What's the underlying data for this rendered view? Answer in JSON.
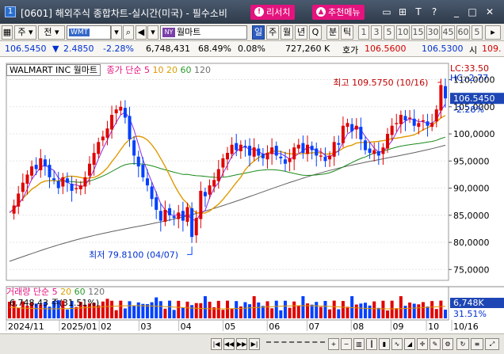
{
  "window": {
    "number": "1",
    "title": "[0601] 해외주식 종합차트-실시간(미국) - 필수소비",
    "research_button": "리서치",
    "recommend_button": "추천메뉴",
    "controls": [
      "▭",
      "⊞",
      "T",
      "?",
      "_",
      "□",
      "✕"
    ]
  },
  "toolbar": {
    "market": "주",
    "tab_label": "전",
    "code": "WMT",
    "exchange": "NY",
    "name": "월마트",
    "periods": [
      "일",
      "주",
      "월",
      "년",
      "Q",
      "분",
      "틱"
    ],
    "selected_period": "일",
    "intervals": [
      "1",
      "3",
      "5",
      "10",
      "15",
      "30",
      "45",
      "60",
      "5"
    ]
  },
  "quote": {
    "price": "106.5450",
    "change_arrow": "▼",
    "change": "2.4850",
    "change_pct": "-2.28%",
    "volume": "6,748,431",
    "volume_ratio": "68.49%",
    "turnover_pct": "0.08%",
    "amount": "727,260 K",
    "bid_label": "호가",
    "bid": "106.5600",
    "ask": "106.5300",
    "extra_label": "시",
    "extra_value": "109."
  },
  "chart": {
    "legend_name": "WALMART INC 월마트",
    "legend_ma_label": "종가 단순",
    "legend_ma_values": [
      "5",
      "10",
      "20",
      "60",
      "120"
    ],
    "legend_ma_colors": [
      "#e4137e",
      "#e09000",
      "#d4a200",
      "#2a9a2a",
      "#707070"
    ],
    "high_annotation": "최고 109.5750 (10/16)",
    "low_annotation": "최저 79.8100 (04/07)",
    "lc_label": "LC:33.50",
    "hc_label": "HC:-2.77",
    "price_tag": "106.5450",
    "pct_tag": "-2.28%",
    "volume_legend_label": "거래량 단순",
    "volume_legend_values": [
      "5",
      "20",
      "60",
      "120"
    ],
    "volume_value": "6,748,43 주(31.51%)",
    "volume_tag": "6,748K",
    "volume_pct_tag": "31.51%",
    "colors": {
      "up": "#e00000",
      "down": "#0040ff",
      "ma5": "#8a2be2",
      "ma20": "#e09a00",
      "ma60": "#1a8a1a",
      "ma120": "#606060"
    }
  },
  "chart_data": {
    "type": "line",
    "title": "WALMART INC 월마트",
    "ylim": [
      73,
      113
    ],
    "y_ticks": [
      "110,0000",
      "105,0000",
      "100,0000",
      "95,0000",
      "90,0000",
      "85,0000",
      "80,0000",
      "75,0000"
    ],
    "x_labels": [
      "2024/11",
      "2025/01",
      "02",
      "03",
      "04",
      "05",
      "06",
      "07",
      "08",
      "09",
      "10",
      "10/16"
    ],
    "series": [
      {
        "name": "종가",
        "values": [
          85.5,
          86.8,
          89.0,
          91.0,
          92.5,
          94.0,
          93.5,
          95.5,
          94.0,
          92.0,
          91.5,
          90.0,
          92.0,
          91.0,
          89.5,
          90.0,
          90.5,
          92.0,
          94.5,
          96.5,
          98.5,
          99.5,
          101.0,
          103.5,
          104.5,
          105.0,
          103.0,
          99.0,
          96.0,
          94.0,
          92.0,
          90.5,
          88.0,
          86.0,
          84.0,
          86.0,
          85.0,
          84.5,
          85.5,
          84.0,
          86.5,
          81.0,
          84.5,
          89.5,
          88.5,
          90.5,
          91.5,
          93.5,
          95.5,
          96.5,
          98.0,
          97.0,
          98.0,
          97.5,
          96.0,
          97.5,
          96.0,
          95.5,
          96.5,
          97.5,
          96.0,
          95.5,
          94.5,
          95.5,
          97.5,
          98.0,
          96.5,
          98.0,
          97.0,
          96.0,
          96.0,
          95.0,
          96.0,
          98.5,
          98.0,
          101.5,
          102.0,
          100.5,
          101.5,
          99.0,
          97.0,
          96.5,
          97.0,
          96.0,
          97.5,
          100.0,
          101.5,
          102.0,
          103.5,
          102.5,
          103.0,
          101.5,
          102.0,
          102.5,
          101.5,
          102.0,
          104.5,
          109.0,
          106.545
        ]
      }
    ],
    "high": {
      "value": 109.575,
      "date": "10/16"
    },
    "low": {
      "value": 79.81,
      "date": "04/07"
    }
  }
}
